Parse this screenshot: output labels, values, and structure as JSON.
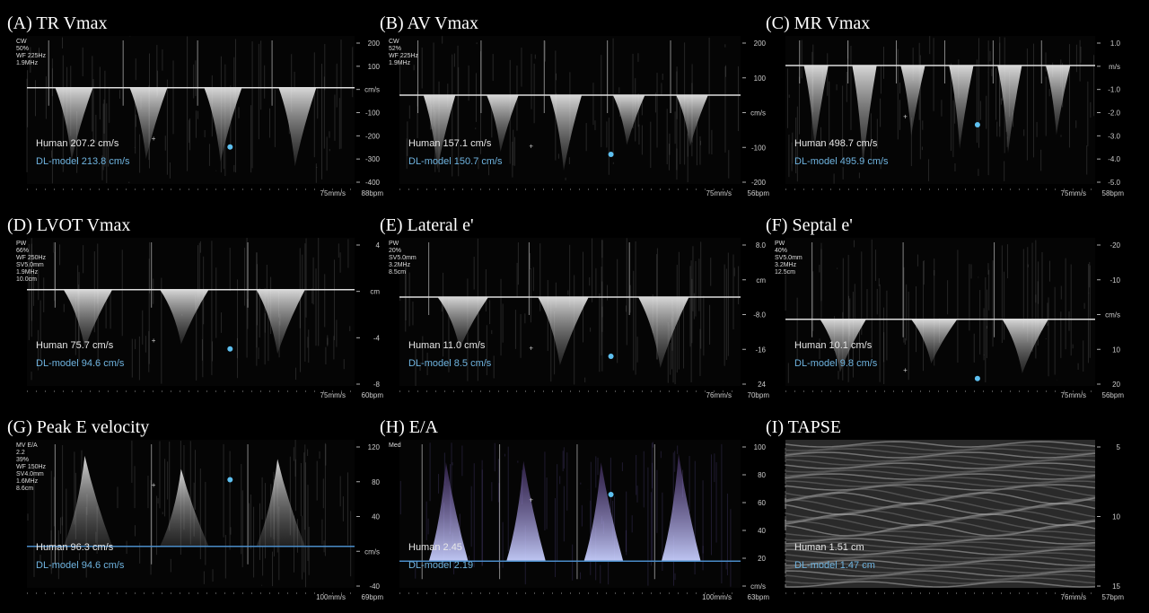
{
  "panels": [
    {
      "title": "(A) TR Vmax",
      "info": [
        "CW",
        "50%",
        "WF 225Hz",
        "1.9MHz"
      ],
      "axis": [
        "200",
        "100",
        "cm/s",
        "-100",
        "-200",
        "-300",
        "-400"
      ],
      "human": "Human 207.2 cm/s",
      "model": "DL-model 213.8 cm/s",
      "speed": "75mm/s",
      "rate": "88bpm"
    },
    {
      "title": "(B) AV Vmax",
      "info": [
        "CW",
        "52%",
        "WF 225Hz",
        "1.9MHz"
      ],
      "axis": [
        "200",
        "100",
        "cm/s",
        "-100",
        "-200"
      ],
      "human": "Human 157.1 cm/s",
      "model": "DL-model 150.7 cm/s",
      "speed": "75mm/s",
      "rate": "56bpm"
    },
    {
      "title": "(C) MR Vmax",
      "info": [],
      "axis": [
        "1.0",
        "m/s",
        "-1.0",
        "-2.0",
        "-3.0",
        "-4.0",
        "-5.0"
      ],
      "human": "Human 498.7 cm/s",
      "model": "DL-model 495.9 cm/s",
      "speed": "75mm/s",
      "rate": "58bpm"
    },
    {
      "title": "(D) LVOT Vmax",
      "info": [
        "PW",
        "66%",
        "WF 250Hz",
        "SV5.0mm",
        "1.9MHz",
        "10.0cm"
      ],
      "axis": [
        "4",
        "cm",
        "-4",
        "-8"
      ],
      "human": "Human 75.7 cm/s",
      "model": "DL-model 94.6 cm/s",
      "speed": "75mm/s",
      "rate": "60bpm"
    },
    {
      "title": "(E) Lateral e'",
      "info": [
        "PW",
        "20%",
        "SV5.0mm",
        "3.2MHz",
        "8.5cm"
      ],
      "axis": [
        "8.0",
        "cm",
        "-8.0",
        "-16",
        "24"
      ],
      "human": "Human 11.0 cm/s",
      "model": "DL-model 8.5 cm/s",
      "speed": "76mm/s",
      "rate": "70bpm"
    },
    {
      "title": "(F) Septal e'",
      "info": [
        "PW",
        "40%",
        "SV5.0mm",
        "3.2MHz",
        "12.5cm"
      ],
      "axis": [
        "-20",
        "-10",
        "cm/s",
        "10",
        "20"
      ],
      "human": "Human 10.1 cm/s",
      "model": "DL-model 9.8 cm/s",
      "speed": "75mm/s",
      "rate": "56bpm"
    },
    {
      "title": "(G) Peak E velocity",
      "info": [
        "MV E/A",
        "2.2",
        "39%",
        "WF 150Hz",
        "SV4.0mm",
        "1.6MHz",
        "8.6cm"
      ],
      "axis": [
        "120",
        "80",
        "40",
        "cm/s",
        "-40"
      ],
      "human": "Human 96.3 cm/s",
      "model": "DL-model 94.6 cm/s",
      "speed": "100mm/s",
      "rate": "69bpm"
    },
    {
      "title": "(H) E/A",
      "info": [
        "Med"
      ],
      "axis": [
        "100",
        "80",
        "60",
        "40",
        "20",
        "cm/s"
      ],
      "human": "Human 2.45",
      "model": "DL-model 2.19",
      "speed": "100mm/s",
      "rate": "63bpm"
    },
    {
      "title": "(I) TAPSE",
      "info": [],
      "axis": [
        "5",
        "10",
        "15"
      ],
      "human": "Human 1.51 cm",
      "model": "DL-model 1.47 cm",
      "speed": "76mm/s",
      "rate": "57bpm"
    }
  ]
}
